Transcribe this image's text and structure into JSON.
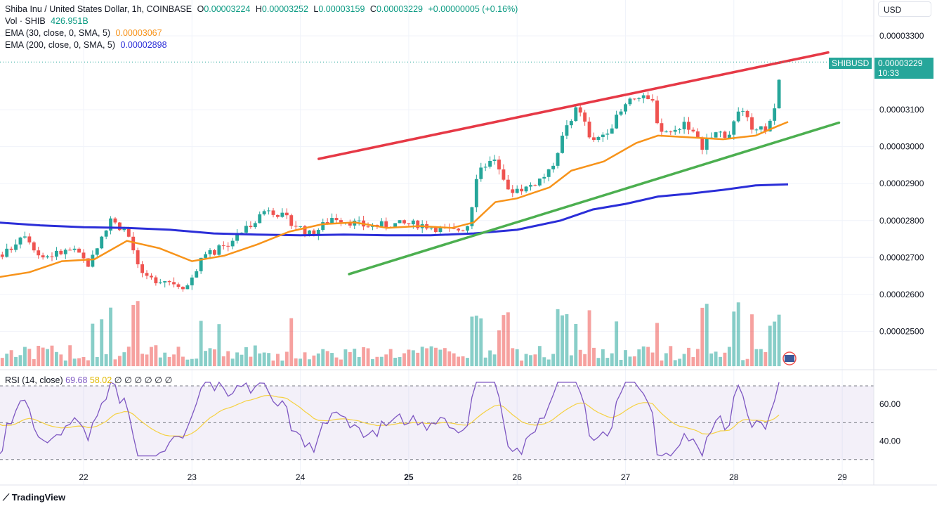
{
  "header": {
    "symbol_line": "Shiba Inu / United States Dollar, 1h, COINBASE",
    "o_label": "O",
    "o_value": "0.00003224",
    "h_label": "H",
    "h_value": "0.00003252",
    "l_label": "L",
    "l_value": "0.00003159",
    "c_label": "C",
    "c_value": "0.00003229",
    "change": "+0.00000005 (+0.16%)",
    "vol_label": "Vol · SHIB",
    "vol_value": "426.951B",
    "ema30_label": "EMA (30, close, 0, SMA, 5)",
    "ema30_value": "0.00003067",
    "ema200_label": "EMA (200, close, 0, SMA, 5)",
    "ema200_value": "0.00002898"
  },
  "currency_button": "USD",
  "price_tag": {
    "symbol": "SHIBUSD",
    "price": "0.00003229",
    "countdown": "10:33"
  },
  "rsi_header": {
    "label": "RSI (14, close)",
    "rsi_value": "69.68",
    "ma_value": "58.02",
    "extras": "∅ ∅ ∅ ∅ ∅ ∅"
  },
  "branding": "TradingView",
  "colors": {
    "up": "#26a69a",
    "down": "#ef5350",
    "ema30": "#f7931a",
    "ema200": "#2b2ed8",
    "resistance": "#e63946",
    "support": "#4caf50",
    "rsi": "#7e57c2",
    "rsi_ma": "#f5d142"
  },
  "chart_data": {
    "type": "candlestick",
    "price_axis": {
      "ticks": [
        "0.00003300",
        "0.00003100",
        "0.00003000",
        "0.00002900",
        "0.00002800",
        "0.00002700",
        "0.00002600",
        "0.00002500"
      ],
      "tick_values": [
        3300,
        3100,
        3000,
        2900,
        2800,
        2700,
        2600,
        2500
      ],
      "unit_note": ""
    },
    "time_axis": {
      "labels": [
        "22",
        "23",
        "24",
        "25",
        "26",
        "27",
        "28",
        "29"
      ],
      "bold": [
        "25"
      ]
    },
    "rsi_axis": {
      "ticks": [
        "60.00",
        "40.00"
      ],
      "tick_values": [
        60,
        40
      ],
      "bands": [
        70,
        50,
        30
      ]
    },
    "trendlines": [
      {
        "name": "",
        "color": "resistance",
        "start": {
          "t": 24.17,
          "v": 2967
        },
        "end": {
          "t": 28.87,
          "v": 3255
        }
      },
      {
        "name": "",
        "color": "support",
        "start": {
          "t": 24.45,
          "v": 2655
        },
        "end": {
          "t": 28.97,
          "v": 3065
        }
      }
    ],
    "ema30": [
      [
        21.2,
        2646
      ],
      [
        21.5,
        2660
      ],
      [
        21.8,
        2690
      ],
      [
        22.1,
        2695
      ],
      [
        22.4,
        2745
      ],
      [
        22.7,
        2725
      ],
      [
        23.0,
        2690
      ],
      [
        23.3,
        2705
      ],
      [
        23.6,
        2735
      ],
      [
        23.9,
        2770
      ],
      [
        24.2,
        2790
      ],
      [
        24.5,
        2795
      ],
      [
        24.8,
        2780
      ],
      [
        25.1,
        2785
      ],
      [
        25.4,
        2780
      ],
      [
        25.6,
        2795
      ],
      [
        25.8,
        2850
      ],
      [
        26.0,
        2860
      ],
      [
        26.3,
        2890
      ],
      [
        26.5,
        2935
      ],
      [
        26.8,
        2960
      ],
      [
        27.1,
        3010
      ],
      [
        27.3,
        3030
      ],
      [
        27.6,
        3025
      ],
      [
        27.9,
        3020
      ],
      [
        28.2,
        3030
      ],
      [
        28.4,
        3055
      ],
      [
        28.5,
        3067
      ]
    ],
    "ema200": [
      [
        21.2,
        2795
      ],
      [
        21.6,
        2787
      ],
      [
        22.0,
        2782
      ],
      [
        22.4,
        2780
      ],
      [
        22.8,
        2775
      ],
      [
        23.2,
        2765
      ],
      [
        23.6,
        2762
      ],
      [
        24.0,
        2760
      ],
      [
        24.4,
        2762
      ],
      [
        24.8,
        2760
      ],
      [
        25.2,
        2760
      ],
      [
        25.6,
        2765
      ],
      [
        26.0,
        2775
      ],
      [
        26.4,
        2800
      ],
      [
        26.7,
        2830
      ],
      [
        27.0,
        2845
      ],
      [
        27.3,
        2865
      ],
      [
        27.6,
        2873
      ],
      [
        27.9,
        2883
      ],
      [
        28.2,
        2895
      ],
      [
        28.5,
        2898
      ]
    ],
    "candles": [],
    "volume_ref": "426.951B",
    "rsi_last": 69.68,
    "rsi_ma_last": 58.02
  }
}
